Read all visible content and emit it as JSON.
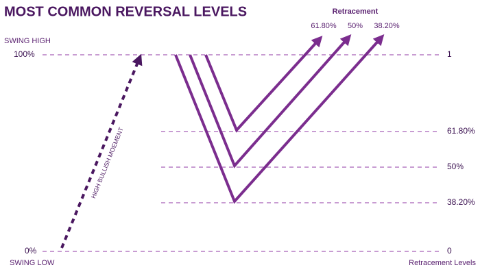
{
  "header": {
    "title": "MOST COMMON REVERSAL LEVELS"
  },
  "left": {
    "swing_high": "SWING HIGH",
    "top_level": "100%",
    "bottom_level": "0%",
    "swing_low": "SWING LOW",
    "momentum": "HIGH BULLISH MOEMENT"
  },
  "retracement": {
    "title": "Retracement",
    "arrows": [
      "61.80%",
      "50%",
      "38.20%"
    ]
  },
  "right": {
    "levels": [
      "1",
      "61.80%",
      "50%",
      "38.20%",
      "0"
    ],
    "caption": "Retracement Levels"
  }
}
